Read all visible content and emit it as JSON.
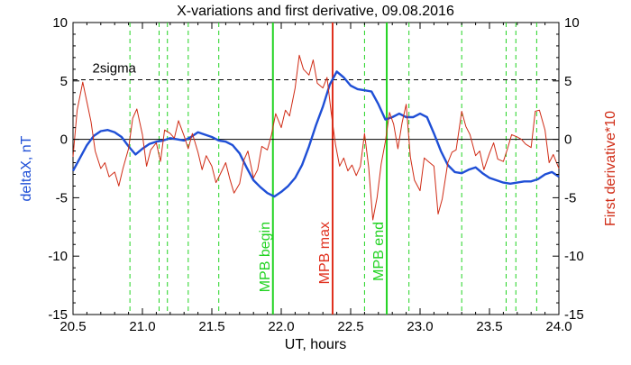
{
  "chart_data": {
    "type": "line",
    "title": "X-variations and first derivative, 09.08.2016",
    "xlabel": "UT, hours",
    "ylabel_left": "deltaX, nT",
    "ylabel_right": "First derivative*10",
    "xlim": [
      20.5,
      24.0
    ],
    "ylim": [
      -15,
      10
    ],
    "x_ticks": [
      20.5,
      21.0,
      21.5,
      22.0,
      22.5,
      23.0,
      23.5,
      24.0
    ],
    "x_tick_labels": [
      "20.5",
      "21.0",
      "21.5",
      "22.0",
      "22.5",
      "23.0",
      "23.5",
      "24.0"
    ],
    "y_ticks": [
      10,
      5,
      0,
      -5,
      -10,
      -15
    ],
    "y_tick_labels": [
      "10",
      "5",
      "0",
      "-5",
      "-10",
      "-15"
    ],
    "grid": false,
    "colors": {
      "deltaX": "#1f4fd6",
      "derivative": "#d02c16",
      "green_lines": "#22d322",
      "mpb_max_line": "#e0301e",
      "zero_line": "#000000",
      "sigma_line": "#000000"
    },
    "sigma_level": 5.1,
    "sigma_label": "2sigma",
    "dashed_green_x": [
      20.91,
      21.12,
      21.18,
      21.33,
      21.55,
      22.6,
      22.92,
      23.3,
      23.62,
      23.69,
      23.84
    ],
    "markers": [
      {
        "label": "MPB begin",
        "x": 21.94,
        "color": "#22d322"
      },
      {
        "label": "MPB max",
        "x": 22.37,
        "color": "#e0301e"
      },
      {
        "label": "MPB end",
        "x": 22.76,
        "color": "#22d322"
      }
    ],
    "series": [
      {
        "key": "deltaX",
        "x": [
          20.5,
          20.55,
          20.6,
          20.65,
          20.7,
          20.75,
          20.8,
          20.85,
          20.9,
          20.95,
          21.0,
          21.05,
          21.1,
          21.15,
          21.2,
          21.25,
          21.3,
          21.35,
          21.4,
          21.45,
          21.5,
          21.55,
          21.6,
          21.65,
          21.7,
          21.75,
          21.8,
          21.85,
          21.9,
          21.95,
          22.0,
          22.05,
          22.1,
          22.15,
          22.2,
          22.25,
          22.3,
          22.35,
          22.4,
          22.45,
          22.5,
          22.55,
          22.6,
          22.65,
          22.7,
          22.75,
          22.8,
          22.85,
          22.9,
          22.95,
          23.0,
          23.05,
          23.1,
          23.15,
          23.2,
          23.25,
          23.3,
          23.35,
          23.4,
          23.45,
          23.5,
          23.55,
          23.6,
          23.65,
          23.7,
          23.75,
          23.8,
          23.85,
          23.9,
          23.95,
          24.0
        ],
        "y": [
          -2.7,
          -1.6,
          -0.5,
          0.3,
          0.7,
          0.8,
          0.6,
          0.2,
          -0.6,
          -1.3,
          -0.8,
          -0.4,
          -0.2,
          -0.1,
          0.1,
          0.0,
          -0.1,
          0.2,
          0.6,
          0.4,
          0.2,
          -0.1,
          -0.2,
          -0.5,
          -1.2,
          -2.4,
          -3.5,
          -4.1,
          -4.6,
          -4.9,
          -4.5,
          -4.0,
          -3.3,
          -2.2,
          -0.6,
          1.2,
          2.8,
          4.7,
          5.8,
          5.3,
          4.6,
          4.3,
          4.2,
          4.1,
          3.0,
          1.7,
          1.9,
          2.2,
          1.9,
          1.9,
          2.2,
          1.9,
          0.5,
          -1.0,
          -2.2,
          -2.8,
          -2.9,
          -2.6,
          -2.4,
          -2.9,
          -3.3,
          -3.5,
          -3.7,
          -3.8,
          -3.7,
          -3.6,
          -3.6,
          -3.4,
          -3.0,
          -2.8,
          -3.2
        ]
      },
      {
        "key": "derivative",
        "x": [
          20.5,
          20.53,
          20.57,
          20.6,
          20.63,
          20.66,
          20.7,
          20.73,
          20.76,
          20.8,
          20.83,
          20.86,
          20.9,
          20.93,
          20.96,
          21.0,
          21.03,
          21.06,
          21.1,
          21.13,
          21.16,
          21.2,
          21.23,
          21.26,
          21.3,
          21.33,
          21.36,
          21.4,
          21.43,
          21.46,
          21.5,
          21.53,
          21.56,
          21.6,
          21.63,
          21.66,
          21.7,
          21.73,
          21.76,
          21.8,
          21.83,
          21.86,
          21.9,
          21.93,
          21.96,
          22.0,
          22.03,
          22.06,
          22.1,
          22.13,
          22.16,
          22.2,
          22.23,
          22.26,
          22.3,
          22.33,
          22.36,
          22.39,
          22.42,
          22.45,
          22.48,
          22.51,
          22.54,
          22.57,
          22.6,
          22.63,
          22.66,
          22.69,
          22.72,
          22.75,
          22.78,
          22.81,
          22.84,
          22.87,
          22.9,
          22.93,
          22.96,
          23.0,
          23.03,
          23.06,
          23.1,
          23.13,
          23.16,
          23.2,
          23.23,
          23.26,
          23.3,
          23.33,
          23.36,
          23.4,
          23.43,
          23.46,
          23.5,
          23.53,
          23.56,
          23.6,
          23.63,
          23.66,
          23.7,
          23.73,
          23.76,
          23.8,
          23.83,
          23.86,
          23.9,
          23.93,
          23.96,
          24.0
        ],
        "y": [
          -1.5,
          2.5,
          4.9,
          3.2,
          1.5,
          -1.0,
          -2.5,
          -2.0,
          -3.2,
          -2.8,
          -4.0,
          -2.5,
          -0.8,
          1.8,
          2.6,
          0.4,
          -2.3,
          -0.9,
          -0.3,
          -1.9,
          0.8,
          0.5,
          0.1,
          1.6,
          0.3,
          -0.8,
          0.5,
          -1.1,
          -2.6,
          -1.4,
          -2.3,
          -3.7,
          -3.0,
          -2.0,
          -3.4,
          -4.6,
          -3.8,
          -1.8,
          -1.0,
          -3.3,
          -2.6,
          -0.6,
          -0.9,
          0.4,
          2.2,
          1.0,
          2.5,
          2.0,
          4.4,
          7.2,
          6.0,
          5.5,
          6.8,
          4.8,
          4.4,
          5.3,
          2.3,
          -0.4,
          -2.3,
          -1.6,
          -2.7,
          -2.2,
          -3.1,
          -2.3,
          0.5,
          -2.4,
          -6.9,
          -5.0,
          -2.1,
          -0.2,
          2.3,
          1.3,
          -0.8,
          1.4,
          3.0,
          -1.5,
          -3.5,
          -4.4,
          -1.6,
          -1.9,
          -2.3,
          -6.4,
          -5.1,
          -2.0,
          -1.1,
          -0.9,
          2.4,
          1.1,
          0.4,
          -1.4,
          -1.0,
          -2.6,
          -1.2,
          -0.3,
          -1.7,
          -1.9,
          -0.8,
          0.4,
          0.2,
          0.0,
          -0.4,
          -0.7,
          2.4,
          2.5,
          0.8,
          -2.0,
          -1.3,
          -2.5
        ]
      }
    ]
  }
}
